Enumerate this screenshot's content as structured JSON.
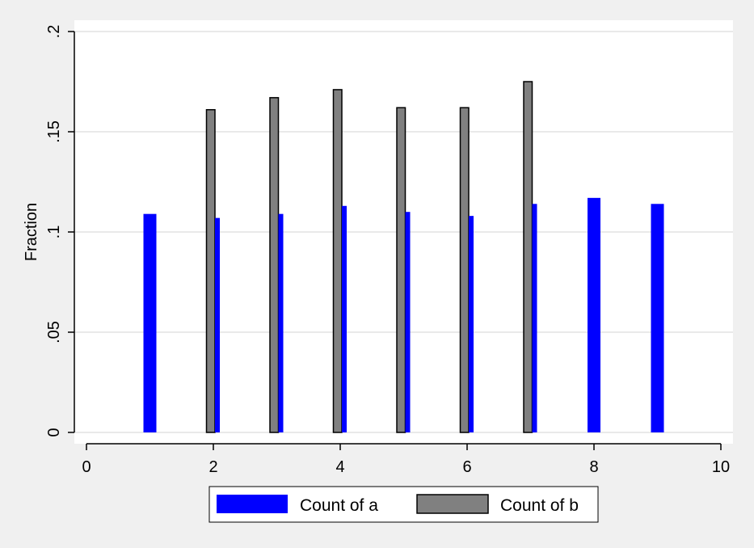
{
  "chart_data": {
    "type": "bar",
    "title": "",
    "xlabel": "",
    "ylabel": "Fraction",
    "xlim": [
      0,
      10
    ],
    "ylim": [
      0,
      0.2
    ],
    "xticks": [
      0,
      2,
      4,
      6,
      8,
      10
    ],
    "xtick_labels": [
      "0",
      "2",
      "4",
      "6",
      "8",
      "10"
    ],
    "yticks": [
      0,
      0.05,
      0.1,
      0.15,
      0.2
    ],
    "ytick_labels": [
      "0",
      ".05",
      ".1",
      ".15",
      ".2"
    ],
    "grid": true,
    "legend_position": "bottom",
    "series": [
      {
        "name": "Count of a",
        "color": "#0000ff",
        "x": [
          1,
          2,
          3,
          4,
          5,
          6,
          7,
          8,
          9
        ],
        "values": [
          0.109,
          0.107,
          0.109,
          0.113,
          0.11,
          0.108,
          0.114,
          0.117,
          0.114
        ]
      },
      {
        "name": "Count of b",
        "color": "#808080",
        "x": [
          2,
          3,
          4,
          5,
          6,
          7
        ],
        "values": [
          0.161,
          0.167,
          0.171,
          0.162,
          0.162,
          0.175
        ]
      }
    ]
  }
}
